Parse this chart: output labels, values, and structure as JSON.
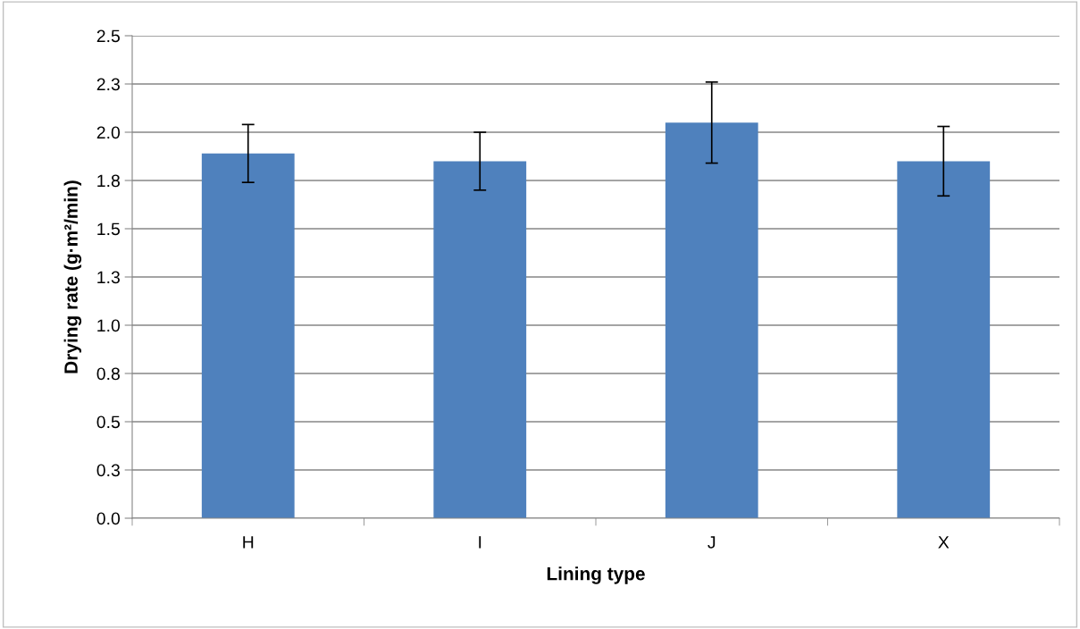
{
  "chart_data": {
    "type": "bar",
    "xlabel": "Lining type",
    "ylabel": "Drying rate (g·m²/min)",
    "categories": [
      "H",
      "I",
      "J",
      "X"
    ],
    "values": [
      1.89,
      1.85,
      2.05,
      1.85
    ],
    "errors": [
      0.15,
      0.15,
      0.21,
      0.18
    ],
    "color": "#4f81bd",
    "ylim": [
      0,
      2.5
    ],
    "yticks": [
      {
        "value": 0,
        "label": "0.0"
      },
      {
        "value": 0.25,
        "label": "0.3"
      },
      {
        "value": 0.5,
        "label": "0.5"
      },
      {
        "value": 0.75,
        "label": "0.8"
      },
      {
        "value": 1.0,
        "label": "1.0"
      },
      {
        "value": 1.25,
        "label": "1.3"
      },
      {
        "value": 1.5,
        "label": "1.5"
      },
      {
        "value": 1.75,
        "label": "1.8"
      },
      {
        "value": 2.0,
        "label": "2.0"
      },
      {
        "value": 2.25,
        "label": "2.3"
      },
      {
        "value": 2.5,
        "label": "2.5"
      }
    ],
    "grid": "y"
  }
}
